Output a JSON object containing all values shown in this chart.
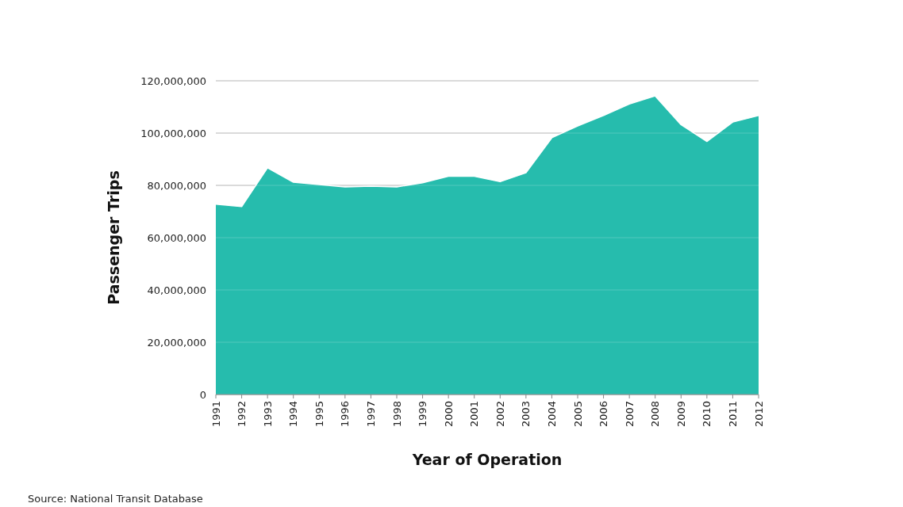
{
  "chart_data": {
    "type": "area",
    "xlabel": "Year of Operation",
    "ylabel": "Passenger Trips",
    "categories": [
      "1991",
      "1992",
      "1993",
      "1994",
      "1995",
      "1996",
      "1997",
      "1998",
      "1999",
      "2000",
      "2001",
      "2002",
      "2003",
      "2004",
      "2005",
      "2006",
      "2007",
      "2008",
      "2009",
      "2010",
      "2011",
      "2012"
    ],
    "series": [
      {
        "color": "#26bcad",
        "values": [
          72800000,
          71900000,
          86700000,
          81200000,
          80300000,
          79400000,
          79700000,
          79400000,
          81000000,
          83500000,
          83500000,
          81400000,
          84800000,
          98200000,
          102700000,
          106700000,
          111100000,
          114200000,
          103200000,
          96800000,
          104200000,
          106700000
        ]
      }
    ],
    "ylim": [
      0,
      120000000
    ],
    "yticks": [
      {
        "value": 0,
        "label": "0"
      },
      {
        "value": 20000000,
        "label": "20,000,000"
      },
      {
        "value": 40000000,
        "label": "40,000,000"
      },
      {
        "value": 60000000,
        "label": "60,000,000"
      },
      {
        "value": 80000000,
        "label": "80,000,000"
      },
      {
        "value": 100000000,
        "label": "100,000,000"
      },
      {
        "value": 120000000,
        "label": "120,000,000"
      }
    ],
    "grid": "y",
    "annotations": [
      "Source: National Transit Database"
    ]
  }
}
